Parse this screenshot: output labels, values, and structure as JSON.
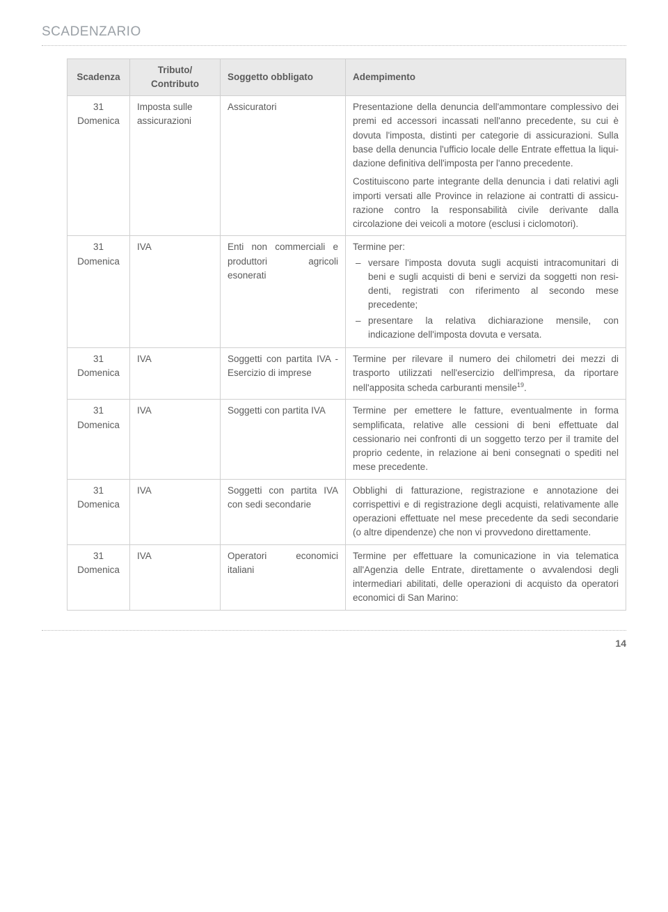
{
  "header": "SCADENZARIO",
  "pageNumber": "14",
  "columns": {
    "c1": "Scadenza",
    "c2_l1": "Tributo/",
    "c2_l2": "Contributo",
    "c3": "Soggetto obbligato",
    "c4": "Adempimento"
  },
  "rows": [
    {
      "scad_l1": "31",
      "scad_l2": "Domenica",
      "trib": "Imposta sulle assicurazioni",
      "sogg": "Assicuratori",
      "ad_p1": "Presentazione della denuncia dell'ammon­tare complessivo dei premi ed accessori incassati nell'anno precedente, su cui è dovuta l'imposta, distinti per categorie di assicurazioni. Sulla base della denuncia l'ufficio locale delle Entrate effettua la liqui­dazione definitiva dell'imposta per l'anno precedente.",
      "ad_p2": "Costituiscono parte integrante della denun­cia i dati relativi agli importi versati alle Province in relazione ai contratti di assicu­razione contro la responsabilità civile deri­vante dalla circolazione dei veicoli a motore (esclusi i ciclomotori)."
    },
    {
      "scad_l1": "31",
      "scad_l2": "Domenica",
      "trib": "IVA",
      "sogg": "Enti non commer­ciali e produttori agricoli esonerati",
      "ad_label": "Termine per:",
      "ad_li1": "versare l'imposta dovuta sugli acquisti intracomunitari di beni e sugli acquisti di beni e servizi da soggetti non resi­denti, registrati con riferimento al secondo mese precedente;",
      "ad_li2": "presentare la relativa dichiarazione mensile, con indicazione dell'imposta dovuta e versata."
    },
    {
      "scad_l1": "31",
      "scad_l2": "Domenica",
      "trib": "IVA",
      "sogg": "Soggetti con partita IVA - Esercizio di im­prese",
      "ad_p1_pre": "Termine per rilevare il numero dei chilome­tri dei mezzi di trasporto utilizzati nell'eser­cizio dell'impresa, da riportare nell'apposita scheda carburanti mensile",
      "ad_sup": "19",
      "ad_p1_post": "."
    },
    {
      "scad_l1": "31",
      "scad_l2": "Domenica",
      "trib": "IVA",
      "sogg": "Soggetti con partita IVA",
      "ad_p1": "Termine per emettere le fatture, eventual­mente in forma semplificata, relative alle cessioni di beni effettuate dal cessionario nei confronti di un soggetto terzo per il tramite del proprio cedente, in relazione ai beni consegnati o spediti nel mese precedente."
    },
    {
      "scad_l1": "31",
      "scad_l2": "Domenica",
      "trib": "IVA",
      "sogg": "Soggetti con partita IVA con sedi secon­darie",
      "ad_p1": "Obblighi di fatturazione, registrazione e an­notazione dei corrispettivi e di registrazione degli acquisti, relativamente alle operazioni effettuate nel mese precedente da sedi secondarie (o altre dipendenze) che non vi provvedono direttamente."
    },
    {
      "scad_l1": "31",
      "scad_l2": "Domenica",
      "trib": "IVA",
      "sogg": "Operatori economici italiani",
      "ad_p1": "Termine per effettuare la comunicazione in via telematica all'Agenzia delle Entrate, direttamente o avvalendosi degli interme­diari abilitati, delle operazioni di acquisto da operatori economici di San Marino:"
    }
  ]
}
